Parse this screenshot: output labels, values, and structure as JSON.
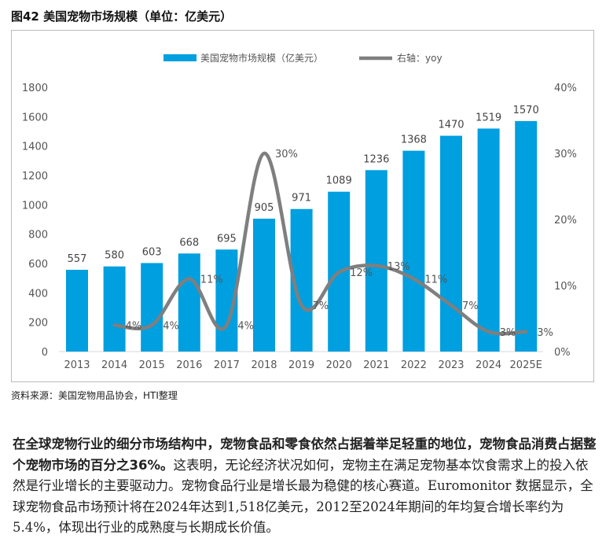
{
  "title": "图42  美国宠物市场规模（单位：亿美元）",
  "source": "资料来源：美国宠物用品协会，HTI整理",
  "paragraph": {
    "bold": "在全球宠物行业的细分市场结构中，宠物食品和零食依然占据着举足轻重的地位，宠物食品消费占据整个宠物市场的百分之36%。",
    "normal": "这表明，无论经济状况如何，宠物主在满足宠物基本饮食需求上的投入依然是行业增长的主要驱动力。宠物食品行业是增长最为稳健的核心赛道。Euromonitor 数据显示，全球宠物食品市场预计将在2024年达到1,518亿美元，2012至2024年期间的年均复合增长率约为 5.4%，体现出行业的成熟度与长期成长价值。"
  },
  "chart_data": {
    "type": "bar+line",
    "categories": [
      "2013",
      "2014",
      "2015",
      "2016",
      "2017",
      "2018",
      "2019",
      "2020",
      "2021",
      "2022",
      "2023",
      "2024",
      "2025E"
    ],
    "series": [
      {
        "name": "美国宠物市场规模（亿美元）",
        "type": "bar",
        "axis": "left",
        "color": "#009fdf",
        "values": [
          557,
          580,
          603,
          668,
          695,
          905,
          971,
          1089,
          1236,
          1368,
          1470,
          1519,
          1570
        ],
        "labels": [
          "557",
          "580",
          "603",
          "668",
          "695",
          "905",
          "971",
          "1089",
          "1236",
          "1368",
          "1470",
          "1519",
          "1570"
        ]
      },
      {
        "name": "右轴：yoy",
        "type": "line",
        "axis": "right",
        "color": "#7f7f7f",
        "values": [
          null,
          4,
          4,
          11,
          4,
          30,
          7,
          12,
          13,
          11,
          7,
          3,
          3
        ],
        "labels": [
          "",
          "4%",
          "4%",
          "11%",
          "4%",
          "30%",
          "7%",
          "12%",
          "13%",
          "11%",
          "7%",
          "3%",
          "3%"
        ]
      }
    ],
    "yleft": {
      "lim": [
        0,
        1800
      ],
      "ticks": [
        "0",
        "200",
        "400",
        "600",
        "800",
        "1000",
        "1200",
        "1400",
        "1600",
        "1800"
      ]
    },
    "yright": {
      "lim": [
        0,
        40
      ],
      "ticks": [
        "0%",
        "10%",
        "20%",
        "30%",
        "40%"
      ]
    },
    "legend": "top-center"
  }
}
